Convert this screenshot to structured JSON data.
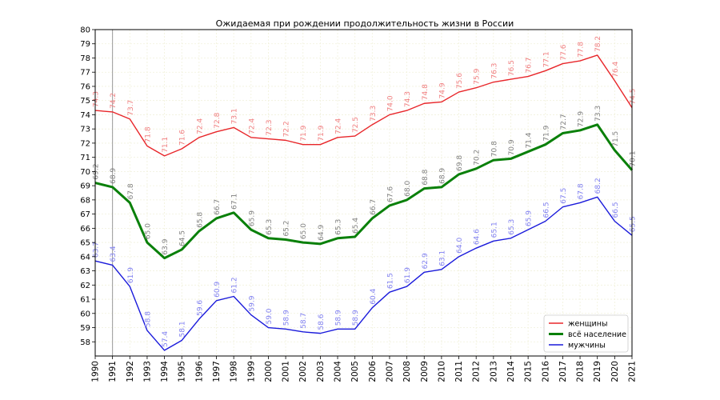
{
  "chart_data": {
    "type": "line",
    "title": "Ожидаемая при рождении продолжительность жизни в России",
    "xlabel": "",
    "ylabel": "",
    "x": [
      1990,
      1991,
      1992,
      1993,
      1994,
      1995,
      1996,
      1997,
      1998,
      1999,
      2000,
      2001,
      2002,
      2003,
      2004,
      2005,
      2006,
      2007,
      2008,
      2009,
      2010,
      2011,
      2012,
      2013,
      2014,
      2015,
      2016,
      2017,
      2018,
      2019,
      2020,
      2021
    ],
    "ylim": [
      57,
      80
    ],
    "yticks": [
      58,
      59,
      60,
      61,
      62,
      63,
      64,
      65,
      66,
      67,
      68,
      69,
      70,
      71,
      72,
      73,
      74,
      75,
      76,
      77,
      78,
      79,
      80
    ],
    "grid": true,
    "vline_x": 1991,
    "legend_position": "bottom-right",
    "series": [
      {
        "name": "женщины",
        "color": "#e8262a",
        "label_color": "#f07f80",
        "line_width": 1.4,
        "values": [
          74.3,
          74.2,
          73.7,
          71.8,
          71.1,
          71.6,
          72.4,
          72.8,
          73.1,
          72.4,
          72.3,
          72.2,
          71.9,
          71.9,
          72.4,
          72.5,
          73.3,
          74.0,
          74.3,
          74.8,
          74.9,
          75.6,
          75.9,
          76.3,
          76.5,
          76.7,
          77.1,
          77.6,
          77.8,
          78.2,
          76.4,
          74.5
        ]
      },
      {
        "name": "всё население",
        "color": "#0a800a",
        "label_color": "#808080",
        "line_width": 3,
        "values": [
          69.2,
          68.9,
          67.8,
          65.0,
          63.9,
          64.5,
          65.8,
          66.7,
          67.1,
          65.9,
          65.3,
          65.2,
          65.0,
          64.9,
          65.3,
          65.4,
          66.7,
          67.6,
          68.0,
          68.8,
          68.9,
          69.8,
          70.2,
          70.8,
          70.9,
          71.4,
          71.9,
          72.7,
          72.9,
          73.3,
          71.5,
          70.1
        ]
      },
      {
        "name": "мужчины",
        "color": "#1a1adb",
        "label_color": "#8080f0",
        "line_width": 1.4,
        "values": [
          63.7,
          63.4,
          61.9,
          58.8,
          57.4,
          58.1,
          59.6,
          60.9,
          61.2,
          59.9,
          59.0,
          58.9,
          58.7,
          58.6,
          58.9,
          58.9,
          60.4,
          61.5,
          61.9,
          62.9,
          63.1,
          64.0,
          64.6,
          65.1,
          65.3,
          65.9,
          66.5,
          67.5,
          67.8,
          68.2,
          66.5,
          65.5
        ]
      }
    ]
  }
}
